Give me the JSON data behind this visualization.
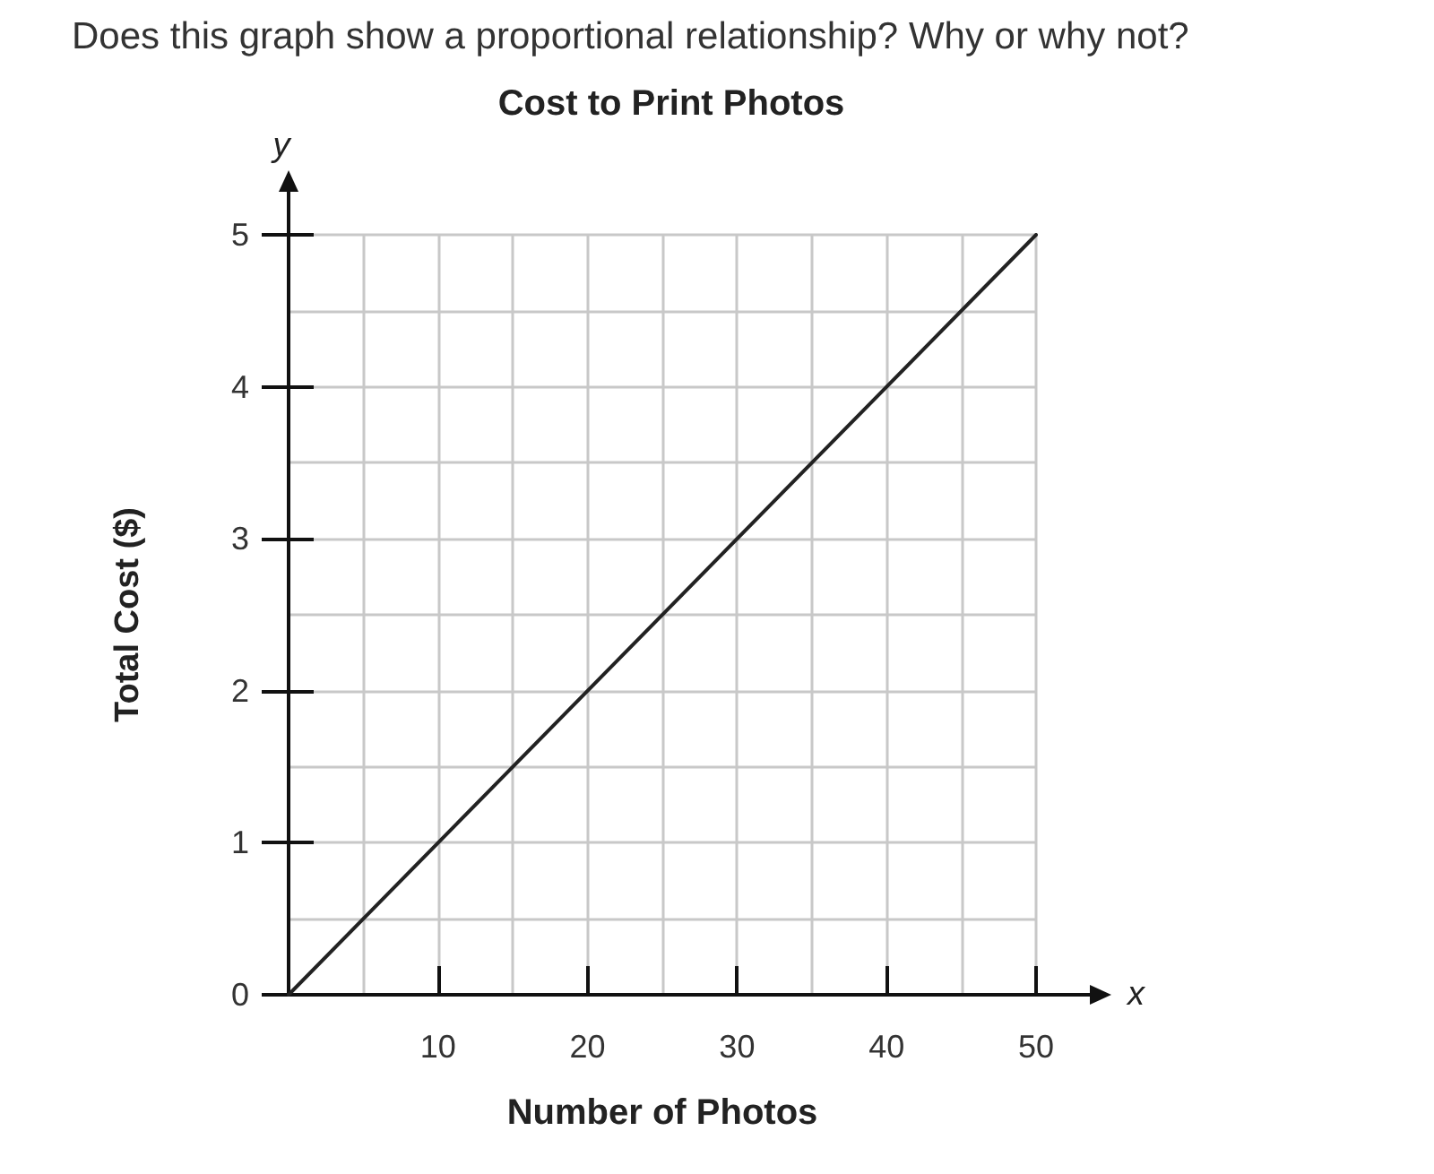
{
  "chart_data": {
    "type": "line",
    "title": "Cost to Print Photos",
    "xlabel": "Number of Photos",
    "ylabel": "Total Cost ($)",
    "annotations": [
      "Does this graph show a proportional relationship? Why or why not?",
      "x",
      "y"
    ],
    "x": [
      0,
      50
    ],
    "values": [
      0,
      5
    ],
    "color": "#222222",
    "xlim": [
      0,
      50
    ],
    "ylim": [
      0,
      5
    ],
    "xticks": [
      10,
      20,
      30,
      40,
      50
    ],
    "yticks": [
      0,
      1,
      2,
      3,
      4,
      5
    ],
    "grid": true,
    "marker": "none",
    "line_style": "solid"
  }
}
